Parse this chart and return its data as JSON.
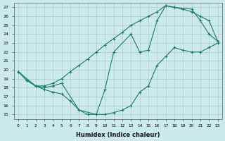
{
  "xlabel": "Humidex (Indice chaleur)",
  "ylabel": "",
  "bg_color": "#cceaea",
  "grid_color": "#aacccc",
  "line_color": "#1a7a6a",
  "xlim": [
    -0.5,
    23.5
  ],
  "ylim": [
    14.5,
    27.5
  ],
  "xticks": [
    0,
    1,
    2,
    3,
    4,
    5,
    6,
    7,
    8,
    9,
    10,
    11,
    12,
    13,
    14,
    15,
    16,
    17,
    18,
    19,
    20,
    21,
    22,
    23
  ],
  "yticks": [
    15,
    16,
    17,
    18,
    19,
    20,
    21,
    22,
    23,
    24,
    25,
    26,
    27
  ],
  "line1_x": [
    0,
    1,
    2,
    3,
    4,
    5,
    6,
    7,
    8,
    9,
    10,
    11,
    12,
    13,
    14,
    15,
    16,
    17,
    18,
    19,
    20,
    21,
    22,
    23
  ],
  "line1_y": [
    19.8,
    18.8,
    18.2,
    17.8,
    17.5,
    17.3,
    16.5,
    15.5,
    15.0,
    15.0,
    15.0,
    15.2,
    15.5,
    16.0,
    17.5,
    18.2,
    20.5,
    21.5,
    22.5,
    22.2,
    22.0,
    22.0,
    22.5,
    23.0
  ],
  "line2_x": [
    0,
    1,
    2,
    3,
    4,
    5,
    6,
    7,
    8,
    9,
    10,
    11,
    12,
    13,
    14,
    15,
    16,
    17,
    18,
    19,
    20,
    21,
    22,
    23
  ],
  "line2_y": [
    19.8,
    18.8,
    18.2,
    18.2,
    18.5,
    19.0,
    19.8,
    20.5,
    21.2,
    22.0,
    22.8,
    23.5,
    24.2,
    25.0,
    25.5,
    26.0,
    26.5,
    27.2,
    27.0,
    26.8,
    26.5,
    26.0,
    25.5,
    23.2
  ],
  "line3_x": [
    0,
    2,
    3,
    4,
    5,
    7,
    9,
    10,
    11,
    13,
    14,
    15,
    16,
    17,
    18,
    20,
    21,
    22,
    23
  ],
  "line3_y": [
    19.8,
    18.2,
    18.0,
    18.2,
    18.5,
    15.5,
    15.0,
    17.8,
    22.0,
    24.0,
    22.0,
    22.2,
    25.5,
    27.2,
    27.0,
    26.8,
    25.5,
    24.0,
    23.2
  ],
  "marker": "+",
  "markersize": 3.5,
  "linewidth": 0.8
}
